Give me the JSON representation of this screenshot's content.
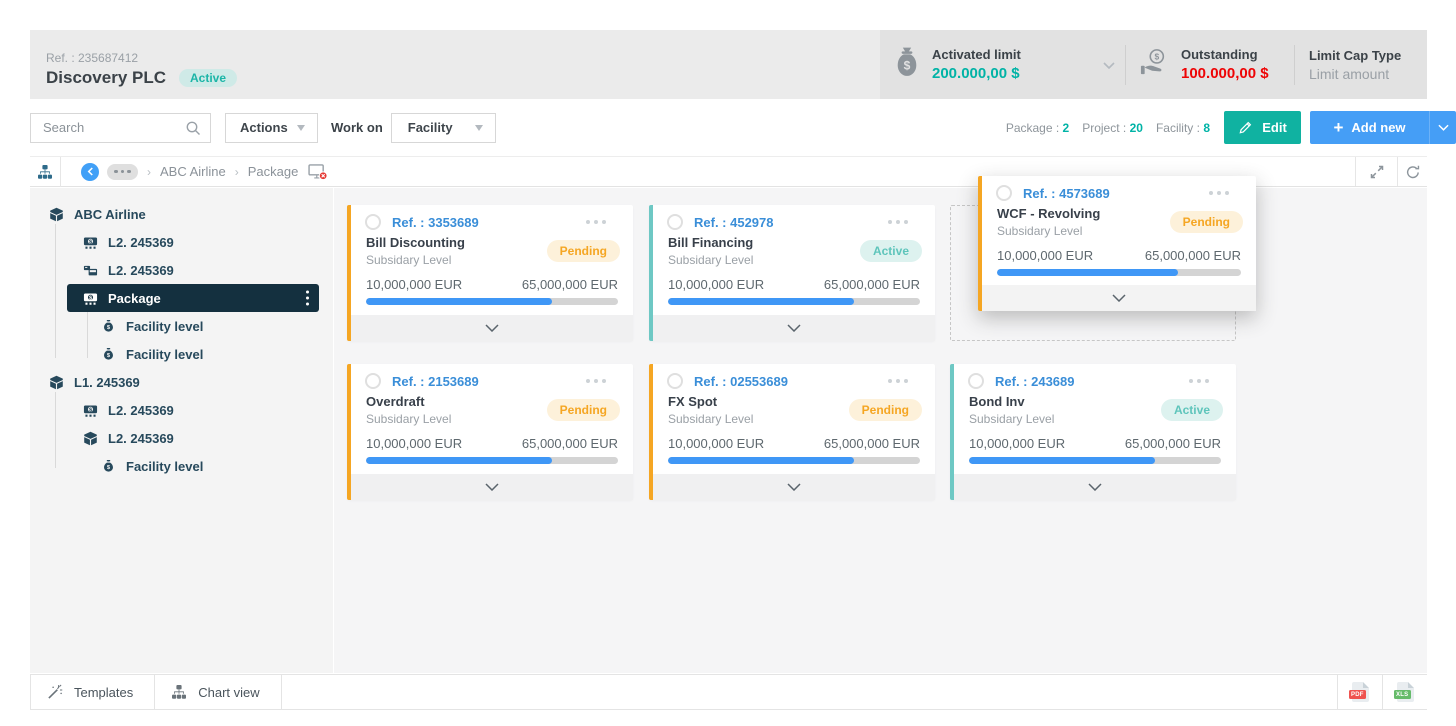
{
  "header": {
    "ref": "Ref. : 235687412",
    "title": "Discovery PLC",
    "status": "Active",
    "metrics": {
      "activated": {
        "label": "Activated limit",
        "value": "200.000,00 $"
      },
      "outstanding": {
        "label": "Outstanding",
        "value": "100.000,00 $"
      },
      "limit_cap": {
        "label": "Limit Cap Type",
        "value": "Limit amount"
      }
    }
  },
  "toolbar": {
    "search_placeholder": "Search",
    "actions_label": "Actions",
    "work_on_label": "Work on",
    "work_on_value": "Facility",
    "counts": [
      {
        "label": "Package",
        "value": "2"
      },
      {
        "label": "Project",
        "value": "20"
      },
      {
        "label": "Facility",
        "value": "8"
      }
    ],
    "edit_label": "Edit",
    "add_new_label": "Add new"
  },
  "breadcrumb": {
    "crumbs": [
      "ABC Airline",
      "Package"
    ]
  },
  "sidebar": {
    "items": [
      {
        "label": "ABC Airline",
        "icon": "box",
        "level": 0
      },
      {
        "label": "L2. 245369",
        "icon": "cash",
        "level": 1
      },
      {
        "label": "L2. 245369",
        "icon": "transfer",
        "level": 1
      },
      {
        "label": "Package",
        "icon": "cash",
        "level": 1,
        "selected": true
      },
      {
        "label": "Facility level",
        "icon": "bag",
        "level": 2
      },
      {
        "label": "Facility level",
        "icon": "bag",
        "level": 2
      },
      {
        "label": "L1. 245369",
        "icon": "box",
        "level": 0
      },
      {
        "label": "L2. 245369",
        "icon": "cash",
        "level": 1
      },
      {
        "label": "L2. 245369",
        "icon": "box",
        "level": 1
      },
      {
        "label": "Facility level",
        "icon": "bag",
        "level": 2
      }
    ]
  },
  "cards": [
    {
      "ref": "Ref. : 3353689",
      "title": "Bill Discounting",
      "subtitle": "Subsidary Level",
      "status": "Pending",
      "amount_left": "10,000,000 EUR",
      "amount_right": "65,000,000 EUR",
      "progress": 74
    },
    {
      "ref": "Ref. : 452978",
      "title": "Bill Financing",
      "subtitle": "Subsidary Level",
      "status": "Active",
      "amount_left": "10,000,000 EUR",
      "amount_right": "65,000,000 EUR",
      "progress": 74
    },
    {
      "ref": "Ref. : 4573689",
      "title": "WCF - Revolving",
      "subtitle": "Subsidary Level",
      "status": "Pending",
      "amount_left": "10,000,000 EUR",
      "amount_right": "65,000,000 EUR",
      "progress": 74,
      "dragging": true
    },
    {
      "ref": "Ref. : 2153689",
      "title": "Overdraft",
      "subtitle": "Subsidary Level",
      "status": "Pending",
      "amount_left": "10,000,000 EUR",
      "amount_right": "65,000,000 EUR",
      "progress": 74
    },
    {
      "ref": "Ref. : 02553689",
      "title": "FX Spot",
      "subtitle": "Subsidary Level",
      "status": "Pending",
      "amount_left": "10,000,000 EUR",
      "amount_right": "65,000,000 EUR",
      "progress": 74
    },
    {
      "ref": "Ref. : 243689",
      "title": "Bond Inv",
      "subtitle": "Subsidary Level",
      "status": "Active",
      "amount_left": "10,000,000 EUR",
      "amount_right": "65,000,000 EUR",
      "progress": 74
    }
  ],
  "bottombar": {
    "tabs": [
      {
        "label": "Templates",
        "icon": "wand"
      },
      {
        "label": "Chart view",
        "icon": "org"
      }
    ],
    "pdf_label": "PDF",
    "xls_label": "XLS"
  }
}
